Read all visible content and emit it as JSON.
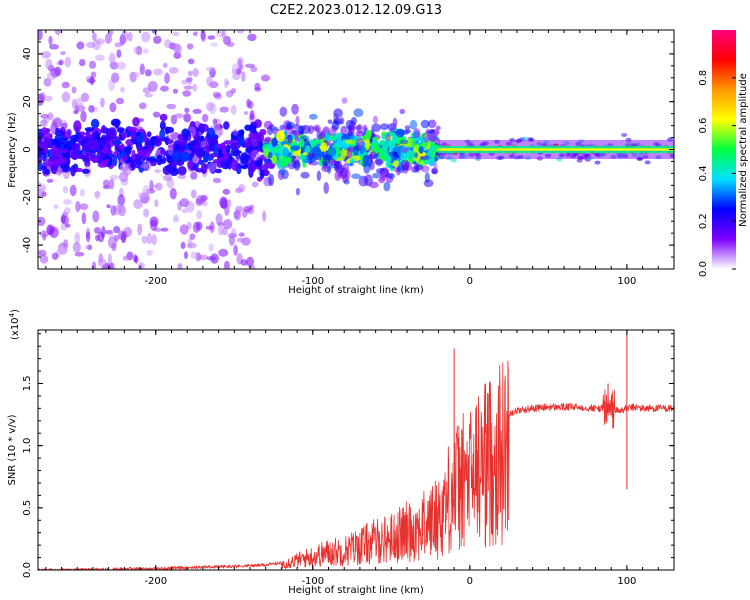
{
  "title": "C2E2.2023.012.12.09.G13",
  "colors": {
    "snr_line": "#e8302c",
    "background": "#ffffff",
    "axis": "#000000"
  },
  "chart_data": [
    {
      "type": "heatmap",
      "title": "C2E2.2023.012.12.09.G13",
      "xlabel": "Height of straight line (km)",
      "ylabel": "Frequency (Hz)",
      "xlim": [
        -275,
        130
      ],
      "ylim": [
        -50,
        50
      ],
      "x_ticks": [
        -200,
        -100,
        0,
        100
      ],
      "x_tick_labels": [
        "-200",
        "-100",
        "0",
        "100"
      ],
      "y_ticks": [
        -40,
        -20,
        0,
        20,
        40
      ],
      "y_tick_labels": [
        "-40",
        "-20",
        "0",
        "20",
        "40"
      ],
      "colorbar": {
        "label": "Normalized spectral amplitude",
        "range": [
          0,
          1
        ],
        "ticks": [
          0.0,
          0.2,
          0.4,
          0.6,
          0.8
        ],
        "tick_labels": [
          "0.0",
          "0.2",
          "0.4",
          "0.6",
          "0.8"
        ],
        "colors": [
          "#ffffff",
          "#7d00ff",
          "#0000ff",
          "#00e0ff",
          "#00ff40",
          "#ffff00",
          "#ff9900",
          "#ff0000",
          "#ff007f"
        ]
      },
      "regions": [
        {
          "x_range": [
            -275,
            -130
          ],
          "freq_spread_hz": 50,
          "core_spread_hz": 8,
          "typical_amplitude": 0.2
        },
        {
          "x_range": [
            -130,
            -20
          ],
          "freq_spread_hz": 12,
          "core_spread_hz": 5,
          "typical_amplitude": 0.45
        },
        {
          "x_range": [
            -20,
            130
          ],
          "freq_spread_hz": 4,
          "core_spread_hz": 1,
          "typical_amplitude": 0.6
        }
      ]
    },
    {
      "type": "line",
      "xlabel": "Height of straight line (km)",
      "ylabel": "SNR (10 * v/v)",
      "y_multiplier_label": "(x10",
      "y_multiplier_exp": "4",
      "y_multiplier_close": ")",
      "xlim": [
        -275,
        130
      ],
      "ylim": [
        0,
        1.93
      ],
      "x_ticks": [
        -200,
        -100,
        0,
        100
      ],
      "x_tick_labels": [
        "-200",
        "-100",
        "0",
        "100"
      ],
      "y_ticks": [
        0.0,
        0.5,
        1.0,
        1.5
      ],
      "y_tick_labels": [
        "0.0",
        "0.5",
        "1.0",
        "1.5"
      ],
      "series": [
        {
          "color": "#e8302c",
          "x": [
            -275,
            -250,
            -220,
            -200,
            -180,
            -150,
            -130,
            -120,
            -110,
            -100,
            -90,
            -80,
            -70,
            -60,
            -50,
            -40,
            -30,
            -20,
            -15,
            -10,
            -5,
            0,
            5,
            10,
            15,
            20,
            25,
            30,
            40,
            50,
            60,
            70,
            80,
            85,
            90,
            95,
            100,
            105,
            110,
            120,
            130
          ],
          "y": [
            0.0,
            0.0,
            0.01,
            0.01,
            0.02,
            0.03,
            0.04,
            0.06,
            0.1,
            0.14,
            0.18,
            0.2,
            0.25,
            0.3,
            0.33,
            0.4,
            0.45,
            0.55,
            0.7,
            0.85,
            0.9,
            0.95,
            1.05,
            1.1,
            1.15,
            1.22,
            1.26,
            1.28,
            1.3,
            1.31,
            1.31,
            1.31,
            1.3,
            1.3,
            1.3,
            1.28,
            1.3,
            1.31,
            1.3,
            1.3,
            1.3
          ]
        }
      ],
      "spikes": [
        {
          "x": -10,
          "y": 1.78
        },
        {
          "x": 10,
          "y": 1.5
        },
        {
          "x": 100,
          "y": 1.92
        },
        {
          "x": 100,
          "y": 0.65
        },
        {
          "x": 88,
          "y": 1.5
        }
      ]
    }
  ]
}
